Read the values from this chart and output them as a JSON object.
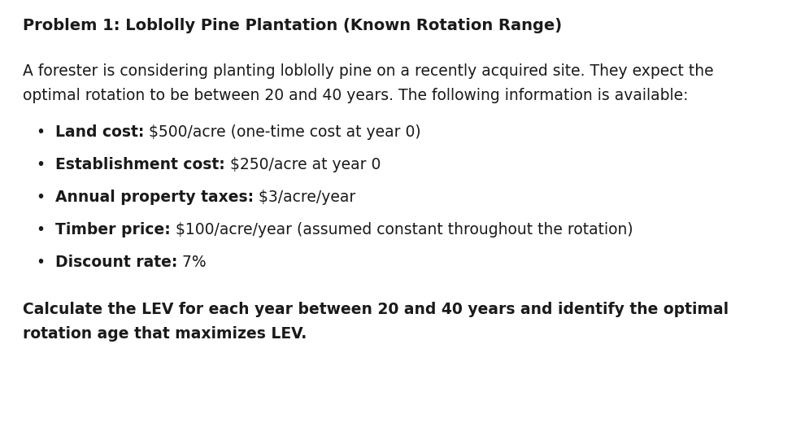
{
  "title": "Problem 1: Loblolly Pine Plantation (Known Rotation Range)",
  "intro_line1": "A forester is considering planting loblolly pine on a recently acquired site. They expect the",
  "intro_line2": "optimal rotation to be between 20 and 40 years. The following information is available:",
  "bullets": [
    {
      "bold": "Land cost:",
      "normal": " $500/acre (one-time cost at year 0)"
    },
    {
      "bold": "Establishment cost:",
      "normal": " $250/acre at year 0"
    },
    {
      "bold": "Annual property taxes:",
      "normal": " $3/acre/year"
    },
    {
      "bold": "Timber price:",
      "normal": " $100/acre/year (assumed constant throughout the rotation)"
    },
    {
      "bold": "Discount rate:",
      "normal": " 7%"
    }
  ],
  "conclusion_line1": "Calculate the LEV for each year between 20 and 40 years and identify the optimal",
  "conclusion_line2": "rotation age that maximizes LEV.",
  "bg_color": "#ffffff",
  "text_color": "#1a1a1a",
  "font_size": 13.5,
  "font_size_title": 14
}
